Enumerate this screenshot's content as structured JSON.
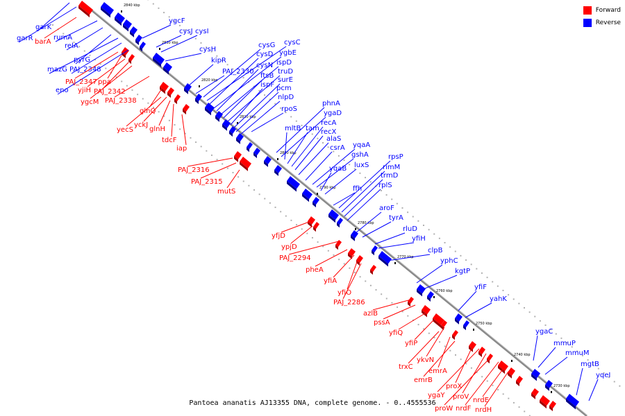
{
  "legend": [
    {
      "label": "Forward",
      "color": "#ff0000"
    },
    {
      "label": "Reverse",
      "color": "#0000ff"
    }
  ],
  "caption": "Pantoea ananatis AJ13355 DNA, complete genome. - 0..4555536",
  "colors": {
    "forward": "#ff0000",
    "reverse": "#0000ff",
    "axis": "#808080"
  },
  "kbp_ticks": [
    "2840 kbp",
    "2830 kbp",
    "2820 kbp",
    "2810 kbp",
    "2800 kbp",
    "2790 kbp",
    "2780 kbp",
    "2770 kbp",
    "2760 kbp",
    "2750 kbp",
    "2740 kbp",
    "2730 kbp"
  ],
  "genes_reverse": [
    "garK",
    "garR",
    "rumA",
    "relA",
    "pyrG",
    "mazG",
    "PAJ_2348",
    "eno",
    "ygcF",
    "cysJ",
    "cysI",
    "cysH",
    "kipR",
    "PAJ_2330",
    "cysG",
    "cysC",
    "cysD",
    "ygbE",
    "cysN",
    "ispD",
    "ftsB",
    "truD",
    "ispF",
    "surE",
    "pcm",
    "nlpD",
    "rpoS",
    "phnA",
    "ygaD",
    "mltB",
    "tam",
    "recA",
    "recX",
    "alaS",
    "csrA",
    "yqaA",
    "gshA",
    "yqaB",
    "luxS",
    "ffh",
    "rpsP",
    "rimM",
    "trmD",
    "rplS",
    "aroF",
    "tyrA",
    "rluD",
    "yfiH",
    "clpB",
    "yphC",
    "kgtP",
    "yfiF",
    "yahK",
    "ygaC",
    "mmuP",
    "mmuM",
    "mgtB",
    "yqeI"
  ],
  "genes_forward": [
    "barA",
    "PAJ_2347",
    "ppa",
    "yjiH",
    "PAJ_2342",
    "ygcM",
    "PAJ_2338",
    "glnQ",
    "yecS",
    "yckJ",
    "glnH",
    "tdcF",
    "iap",
    "PAJ_2316",
    "PAJ_2315",
    "mutS",
    "yfjD",
    "ypjD",
    "PAJ_2294",
    "pheA",
    "yfiA",
    "yfiO",
    "PAJ_2286",
    "azlB",
    "pssA",
    "yfiQ",
    "yfiP",
    "ykvN",
    "trxC",
    "emrA",
    "emrB",
    "proX",
    "ygaY",
    "proV",
    "proW",
    "nrdF",
    "nrdE",
    "nrdH"
  ]
}
